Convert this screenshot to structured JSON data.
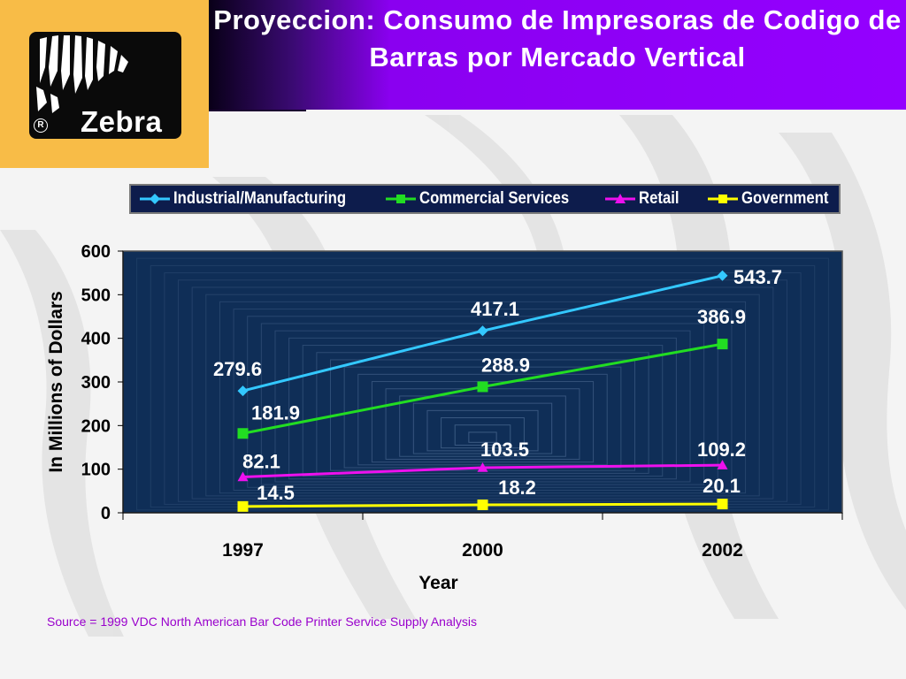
{
  "slide": {
    "title": "Proyeccion: Consumo de Impresoras de Codigo de Barras por Mercado Vertical",
    "source": "Source = 1999 VDC North American Bar Code Printer Service Supply Analysis",
    "logo": {
      "wordmark": "Zebra",
      "registered": "R"
    }
  },
  "colors": {
    "industrial": "#33c8ff",
    "commercial": "#22dd22",
    "retail": "#ee10ee",
    "government": "#ffff00",
    "plot_bg": "#173d6b",
    "banner": "#9400ff",
    "logo_bg": "#f8bc47"
  },
  "chart_data": {
    "type": "line",
    "title": "",
    "xlabel": "Year",
    "ylabel": "In Millions of Dollars",
    "categories": [
      "1997",
      "2000",
      "2002"
    ],
    "ylim": [
      0,
      600
    ],
    "yticks": [
      0,
      100,
      200,
      300,
      400,
      500,
      600
    ],
    "grid": false,
    "legend_position": "top",
    "series": [
      {
        "name": "Industrial/Manufacturing",
        "marker": "diamond",
        "color": "#33c8ff",
        "values": [
          279.6,
          417.1,
          543.7
        ],
        "labels": [
          "279.6",
          "417.1",
          "543.7"
        ]
      },
      {
        "name": "Commercial Services",
        "marker": "square",
        "color": "#22dd22",
        "values": [
          181.9,
          288.9,
          386.9
        ],
        "labels": [
          "181.9",
          "288.9",
          "386.9"
        ]
      },
      {
        "name": "Retail",
        "marker": "triangle",
        "color": "#ee10ee",
        "values": [
          82.1,
          103.5,
          109.2
        ],
        "labels": [
          "82.1",
          "103.5",
          "109.2"
        ]
      },
      {
        "name": "Government",
        "marker": "square",
        "color": "#ffff00",
        "values": [
          14.5,
          18.2,
          20.1
        ],
        "labels": [
          "14.5",
          "18.2",
          "20.1"
        ]
      }
    ]
  }
}
